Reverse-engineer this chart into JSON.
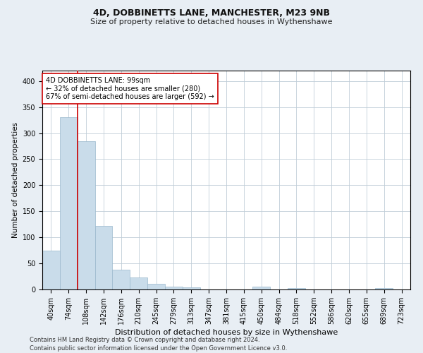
{
  "title": "4D, DOBBINETTS LANE, MANCHESTER, M23 9NB",
  "subtitle": "Size of property relative to detached houses in Wythenshawe",
  "xlabel": "Distribution of detached houses by size in Wythenshawe",
  "ylabel": "Number of detached properties",
  "categories": [
    "40sqm",
    "74sqm",
    "108sqm",
    "142sqm",
    "176sqm",
    "210sqm",
    "245sqm",
    "279sqm",
    "313sqm",
    "347sqm",
    "381sqm",
    "415sqm",
    "450sqm",
    "484sqm",
    "518sqm",
    "552sqm",
    "586sqm",
    "620sqm",
    "655sqm",
    "689sqm",
    "723sqm"
  ],
  "values": [
    75,
    330,
    285,
    122,
    38,
    23,
    11,
    5,
    4,
    0,
    0,
    0,
    5,
    0,
    3,
    0,
    0,
    0,
    0,
    3,
    0
  ],
  "bar_color": "#c9dcea",
  "bar_edge_color": "#9ab8cc",
  "vline_x": 1.5,
  "vline_color": "#cc0000",
  "annotation_text": "4D DOBBINETTS LANE: 99sqm\n← 32% of detached houses are smaller (280)\n67% of semi-detached houses are larger (592) →",
  "annotation_box_color": "#ffffff",
  "annotation_box_edge": "#cc0000",
  "ylim": [
    0,
    420
  ],
  "yticks": [
    0,
    50,
    100,
    150,
    200,
    250,
    300,
    350,
    400
  ],
  "footer_line1": "Contains HM Land Registry data © Crown copyright and database right 2024.",
  "footer_line2": "Contains public sector information licensed under the Open Government Licence v3.0.",
  "bg_color": "#e8eef4",
  "plot_bg_color": "#ffffff",
  "grid_color": "#c0cdd8",
  "title_fontsize": 9,
  "subtitle_fontsize": 8,
  "xlabel_fontsize": 8,
  "ylabel_fontsize": 7.5,
  "tick_fontsize": 7,
  "annotation_fontsize": 7,
  "footer_fontsize": 6
}
